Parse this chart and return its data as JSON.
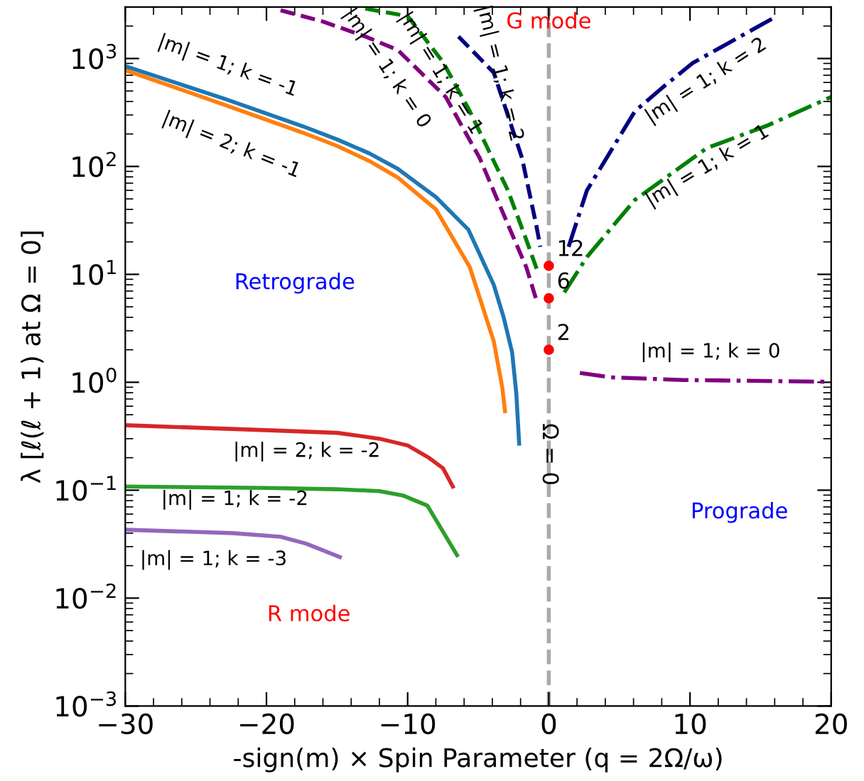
{
  "chart_data": {
    "type": "line",
    "xlabel": "-sign(m) × Spin Parameter (q = 2Ω/ω)",
    "ylabel": "λ [ℓ(ℓ + 1) at Ω = 0]",
    "log": "y",
    "xlim": [
      -30,
      20
    ],
    "ylim": [
      0.001,
      3000
    ],
    "xticks": [
      {
        "value": -30,
        "label": "−30"
      },
      {
        "value": -20,
        "label": "−20"
      },
      {
        "value": -10,
        "label": "−10"
      },
      0,
      10,
      20
    ],
    "yticks": [
      {
        "value": 0.001,
        "label": "10$^{−3}$"
      },
      {
        "value": 0.01,
        "label": "10$^{−2}$"
      },
      {
        "value": 0.1,
        "label": "10$^{−1}$"
      },
      {
        "value": 1,
        "label": "10$^{0}$"
      },
      {
        "value": 10,
        "label": "10$^{1}$"
      },
      {
        "value": 100,
        "label": "10$^{2}$"
      },
      {
        "value": 1000,
        "label": "10$^{3}$"
      }
    ],
    "grid": false,
    "legend": false,
    "marker": "none",
    "series": [
      {
        "name": "|m| = 1; k = -1",
        "color": "#1f77b4",
        "line_style": "solid",
        "x": [
          -30,
          -22.9,
          -17.4,
          -15,
          -12.7,
          -10.7,
          -8,
          -5.7,
          -3.9,
          -3.2,
          -2.6,
          -2.3,
          -2.1
        ],
        "values": [
          850,
          420,
          235,
          178,
          132,
          95,
          52,
          26,
          8,
          4,
          1.9,
          0.78,
          0.27
        ]
      },
      {
        "name": "|m| = 2; k = -1",
        "color": "#ff7f0e",
        "line_style": "solid",
        "x": [
          -30,
          -22.9,
          -17.4,
          -15,
          -12.7,
          -10.7,
          -8,
          -5.6,
          -3.9,
          -3.3,
          -3.1
        ],
        "values": [
          780,
          370,
          205,
          155,
          112,
          79,
          40,
          11.7,
          2.4,
          0.9,
          0.54
        ]
      },
      {
        "name": "|m| = 2; k = -2",
        "color": "#d62728",
        "line_style": "solid",
        "x": [
          -30,
          -20,
          -15,
          -12,
          -10,
          -8.5,
          -7.5,
          -6.8
        ],
        "values": [
          0.4,
          0.36,
          0.34,
          0.3,
          0.26,
          0.2,
          0.16,
          0.108
        ]
      },
      {
        "name": "|m| = 1; k = -2",
        "color": "#2ca02c",
        "line_style": "solid",
        "x": [
          -30,
          -20,
          -15,
          -12,
          -10.3,
          -8.6,
          -6.5
        ],
        "values": [
          0.108,
          0.105,
          0.102,
          0.098,
          0.089,
          0.072,
          0.025
        ]
      },
      {
        "name": "|m| = 1; k = -3",
        "color": "#9467bd",
        "line_style": "solid",
        "x": [
          -30,
          -22.4,
          -19,
          -17.2,
          -14.8
        ],
        "values": [
          0.043,
          0.04,
          0.037,
          0.032,
          0.024
        ]
      },
      {
        "name": "|m| = 1; k = 0",
        "color": "#800080",
        "line_style": "dashed",
        "x": [
          -19,
          -16,
          -13,
          -10.7,
          -7.3,
          -4.9,
          -2.9,
          -1.6,
          -0.9
        ],
        "values": [
          2800,
          2200,
          1600,
          1200,
          440,
          120,
          29,
          11.7,
          5.9
        ]
      },
      {
        "name": "|m| = 1; k = 1",
        "color": "#008000",
        "line_style": "dashed",
        "x": [
          -13,
          -10,
          -7.5,
          -5.6,
          -2.9,
          -1.6,
          -0.8
        ],
        "values": [
          2900,
          2470,
          930,
          325,
          60,
          21,
          10.7
        ]
      },
      {
        "name": "|m| = 1; k = 2",
        "color": "#000080",
        "line_style": "dashed",
        "x": [
          -6.4,
          -3.9,
          -1.9,
          -0.9,
          -0.6
        ],
        "values": [
          1600,
          740,
          120,
          29,
          18
        ]
      },
      {
        "name": "|m| = 1; k = 2",
        "color": "#000080",
        "line_style": "dashdot",
        "x": [
          1.4,
          2.7,
          6.1,
          8.1,
          10.2,
          15.8
        ],
        "values": [
          18,
          60,
          325,
          545,
          910,
          2330
        ]
      },
      {
        "name": "|m| = 1; k = 1",
        "color": "#008000",
        "line_style": "dashdot",
        "x": [
          1.1,
          2.7,
          6.1,
          11.2,
          15.5,
          20
        ],
        "values": [
          6.8,
          14.5,
          49,
          148,
          240,
          440
        ]
      },
      {
        "name": "|m| = 1; k = 0",
        "color": "#800080",
        "line_style": "dashdot",
        "x": [
          2.2,
          4.4,
          9.5,
          20
        ],
        "values": [
          1.22,
          1.11,
          1.05,
          1.01
        ]
      },
      {
        "type": "scatter",
        "marker": "circle",
        "color": "#ff0000",
        "x": [
          0,
          0,
          0
        ],
        "values": [
          2,
          6,
          12
        ],
        "value_labels": [
          "2",
          "6",
          "12"
        ]
      }
    ],
    "ref_lines": [
      {
        "axis": "x",
        "value": 0,
        "label": "Ω = 0",
        "color": "#aaaaaa",
        "line_style": "dashed"
      }
    ],
    "annotations": [
      "G mode",
      "Retrograde",
      "Prograde",
      "R mode"
    ]
  }
}
